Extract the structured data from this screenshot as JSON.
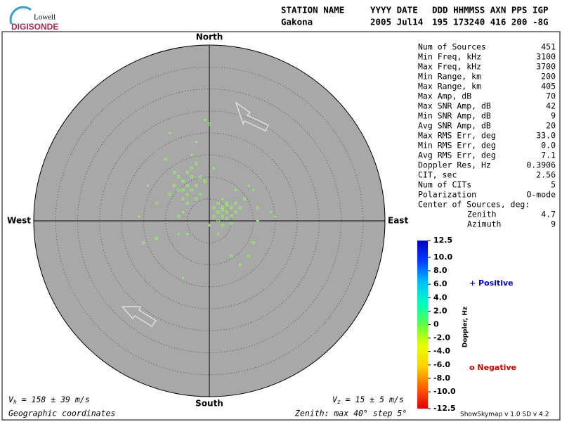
{
  "header": {
    "logo_top": "Lowell",
    "logo_bottom": "DIGISONDE",
    "columns": [
      "STATION NAME",
      "YYYY DATE",
      "DDD HHMMSS AXN PPS IGP"
    ],
    "values": [
      "Gakona",
      "2005 Jul14",
      "195 173240 416 200 -8G"
    ]
  },
  "skymap": {
    "north": "North",
    "south": "South",
    "east": "East",
    "west": "West",
    "zenith_max": 40,
    "zenith_step": 5,
    "point_color": "#8cff5a",
    "circles": [
      [
        -6,
        9
      ],
      [
        -5,
        8
      ],
      [
        -7,
        7
      ],
      [
        -4,
        10
      ],
      [
        -5,
        6
      ],
      [
        -6,
        5
      ],
      [
        -3,
        8
      ],
      [
        -8,
        8
      ],
      [
        -4,
        7
      ],
      [
        -7,
        10
      ],
      [
        -2,
        6
      ],
      [
        -5,
        11
      ],
      [
        -6,
        7
      ],
      [
        -3,
        5
      ],
      [
        -9,
        6
      ],
      [
        -4,
        12
      ],
      [
        -1,
        9
      ],
      [
        -8,
        11
      ],
      [
        -5,
        4
      ],
      [
        -2,
        10
      ],
      [
        3,
        3
      ],
      [
        4,
        2
      ],
      [
        2,
        2
      ],
      [
        5,
        3
      ],
      [
        3,
        1
      ],
      [
        4,
        4
      ],
      [
        6,
        2
      ],
      [
        2,
        4
      ],
      [
        5,
        1
      ],
      [
        3,
        2.5
      ],
      [
        1,
        1
      ],
      [
        7,
        3
      ],
      [
        4,
        0.5
      ],
      [
        2,
        0
      ],
      [
        6,
        4
      ],
      [
        3,
        -1
      ],
      [
        5,
        -0.5
      ],
      [
        8,
        5
      ],
      [
        1,
        3
      ],
      [
        4,
        3.5
      ],
      [
        -15,
        -5
      ],
      [
        -12,
        -4
      ],
      [
        10,
        -5
      ],
      [
        5,
        -8
      ],
      [
        11,
        3
      ],
      [
        -10,
        14
      ],
      [
        0,
        22
      ],
      [
        -3,
        13
      ],
      [
        9,
        -8
      ],
      [
        -7,
        1
      ]
    ],
    "pluses": [
      [
        -1,
        23
      ],
      [
        -9,
        20
      ],
      [
        -14,
        8
      ],
      [
        -16,
        1
      ],
      [
        -6,
        2
      ],
      [
        -3,
        18
      ],
      [
        1,
        12
      ],
      [
        9,
        8
      ],
      [
        14,
        2
      ],
      [
        15,
        1
      ],
      [
        -7,
        -3
      ],
      [
        -6,
        -13
      ],
      [
        7,
        -10
      ],
      [
        -5,
        -3
      ],
      [
        2,
        -3
      ],
      [
        10,
        7
      ],
      [
        11,
        0
      ],
      [
        -12,
        4
      ],
      [
        3,
        5
      ],
      [
        0,
        -1
      ],
      [
        -4,
        15
      ],
      [
        6,
        7
      ]
    ]
  },
  "stats": [
    [
      "Num of Sources",
      "451"
    ],
    [
      "Min Freq, kHz",
      "3100"
    ],
    [
      "Max Freq, kHz",
      "3700"
    ],
    [
      "Min Range, km",
      "200"
    ],
    [
      "Max Range, km",
      "405"
    ],
    [
      "Max Amp, dB",
      "70"
    ],
    [
      "Max SNR Amp, dB",
      "42"
    ],
    [
      "Min SNR Amp, dB",
      "9"
    ],
    [
      "Avg SNR Amp, dB",
      "20"
    ],
    [
      "Max RMS Err, deg",
      "33.0"
    ],
    [
      "Min RMS Err, deg",
      "0.0"
    ],
    [
      "Avg RMS Err, deg",
      "7.1"
    ],
    [
      "Doppler Res, Hz",
      "0.3906"
    ],
    [
      "CIT, sec",
      "2.56"
    ],
    [
      "Num of CITs",
      "5"
    ],
    [
      "Polarization",
      "O-mode"
    ]
  ],
  "center": {
    "title": "Center of Sources, deg:",
    "rows": [
      [
        "Zenith",
        "4.7"
      ],
      [
        "Azimuth",
        "9"
      ]
    ]
  },
  "colorbar": {
    "title": "Doppler, Hz",
    "lim": [
      -12.5,
      12.5
    ],
    "colors": [
      "#e00000",
      "#ff6000",
      "#ffd000",
      "#e8ff00",
      "#60ff40",
      "#00ffc0",
      "#00c0ff",
      "#0040ff",
      "#0000c0"
    ],
    "ticks": [
      12.5,
      {
        "value": 10,
        "label": "10.0"
      },
      {
        "value": 8,
        "label": "8.0"
      },
      {
        "value": 6,
        "label": "6.0"
      },
      {
        "value": 4,
        "label": "4.0"
      },
      {
        "value": 2,
        "label": "2.0"
      },
      0,
      {
        "value": -2,
        "label": "-2.0"
      },
      {
        "value": -4,
        "label": "-4.0"
      },
      {
        "value": -6,
        "label": "-6.0"
      },
      {
        "value": -8,
        "label": "-8.0"
      },
      {
        "value": -10,
        "label": "-10.0"
      },
      -12.5
    ]
  },
  "legend": {
    "positive": "+ Positive",
    "negative": "o Negative"
  },
  "footer": {
    "vh": {
      "symbol": "V",
      "sub": "h",
      "text": " = 158 ± 39 m/s"
    },
    "vz": {
      "symbol": "V",
      "sub": "z",
      "text": " = 15 ± 5 m/s"
    },
    "coords": "Geographic coordinates",
    "zenith": "Zenith: max 40°  step 5°",
    "version": "ShowSkymap v 1.0   SD v 4.2"
  }
}
